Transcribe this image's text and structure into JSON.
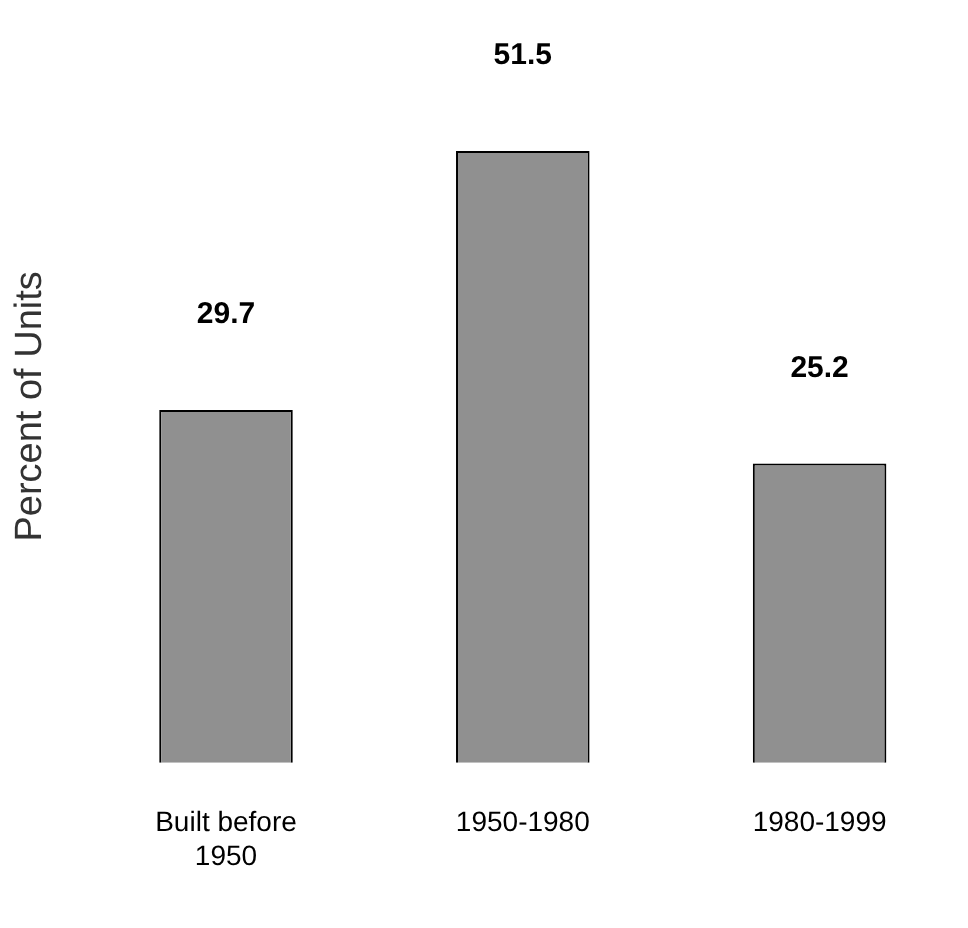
{
  "chart_data": {
    "type": "bar",
    "ylabel": "Percent of Units",
    "categories": [
      "Built before 1950",
      "1950-1980",
      "1980-1999"
    ],
    "values": [
      29.7,
      51.5,
      25.2
    ],
    "color": "#909090",
    "data_labels": true,
    "grid": false,
    "legend": false
  }
}
